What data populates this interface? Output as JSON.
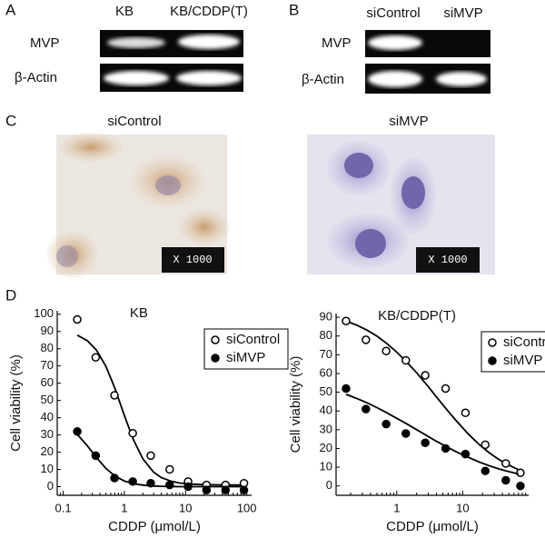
{
  "panels": {
    "A": {
      "label": "A",
      "columns": [
        "KB",
        "KB/CDDP(T)"
      ],
      "rows": [
        "MVP",
        "β-Actin"
      ]
    },
    "B": {
      "label": "B",
      "columns": [
        "siControl",
        "siMVP"
      ],
      "rows": [
        "MVP",
        "β-Actin"
      ]
    },
    "C": {
      "label": "C",
      "images": [
        {
          "title": "siControl",
          "scale": "X 1000"
        },
        {
          "title": "siMVP",
          "scale": "X 1000"
        }
      ]
    },
    "D": {
      "label": "D"
    }
  },
  "chart_data": [
    {
      "type": "scatter",
      "title": "KB",
      "xlabel": "CDDP (μmol/L)",
      "ylabel": "Cell viability (%)",
      "xlog": true,
      "xlim": [
        0.08,
        120
      ],
      "xticks": [
        0.1,
        1,
        10,
        100
      ],
      "ylim": [
        -5,
        102
      ],
      "yticks": [
        0,
        10,
        20,
        30,
        40,
        50,
        60,
        70,
        80,
        90,
        100
      ],
      "legend": "upper right",
      "series": [
        {
          "name": "siControl",
          "marker": "open",
          "color": "#000000",
          "x": [
            0.17,
            0.34,
            0.69,
            1.37,
            2.7,
            5.5,
            11,
            22,
            45,
            90
          ],
          "values": [
            97,
            75,
            53,
            31,
            18,
            10,
            3,
            1,
            1,
            2
          ],
          "fit": {
            "x": [
              0.17,
              0.25,
              0.35,
              0.5,
              0.7,
              1,
              1.4,
              2,
              3,
              4,
              6,
              8,
              12,
              18,
              25,
              35,
              50,
              70,
              90
            ],
            "values": [
              87.9,
              84.6,
              79.2,
              69.8,
              57.1,
              41.3,
              27.3,
              16.2,
              8.4,
              5.3,
              3,
              2.1,
              1.5,
              1.2,
              1.1,
              1.05,
              1,
              1,
              1
            ]
          }
        },
        {
          "name": "siMVP",
          "marker": "filled",
          "color": "#000000",
          "x": [
            0.17,
            0.34,
            0.69,
            1.37,
            2.7,
            5.5,
            11,
            22,
            45,
            90
          ],
          "values": [
            32,
            18,
            5,
            3,
            2,
            1,
            0,
            -2,
            -2,
            -2
          ],
          "fit": {
            "x": [
              0.17,
              0.25,
              0.35,
              0.5,
              0.7,
              1,
              1.4,
              2,
              3,
              4,
              6,
              8,
              12,
              18,
              25,
              35,
              50,
              70,
              90
            ],
            "values": [
              30.3,
              23.6,
              16.9,
              10.6,
              6.2,
              3.3,
              1.75,
              0.9,
              0.4,
              0.2,
              0.1,
              0,
              0,
              0,
              0,
              0,
              0,
              0,
              0
            ]
          }
        }
      ]
    },
    {
      "type": "scatter",
      "title": "KB/CDDP(T)",
      "xlabel": "CDDP (μmol/L)",
      "ylabel": "Cell viability (%)",
      "xlog": true,
      "xlim": [
        0.12,
        100
      ],
      "xticks": [
        1,
        10
      ],
      "ylim": [
        -5,
        92
      ],
      "yticks": [
        0,
        10,
        20,
        30,
        40,
        50,
        60,
        70,
        80,
        90
      ],
      "legend": "upper right",
      "series": [
        {
          "name": "siControl",
          "marker": "open",
          "color": "#000000",
          "x": [
            0.17,
            0.34,
            0.69,
            1.37,
            2.7,
            5.5,
            11,
            22,
            45,
            75
          ],
          "values": [
            88,
            78,
            72,
            67,
            59,
            52,
            39,
            22,
            12,
            7
          ],
          "fit": {
            "x": [
              0.17,
              0.25,
              0.35,
              0.5,
              0.7,
              1,
              1.4,
              2,
              3,
              4,
              6,
              8,
              12,
              18,
              25,
              35,
              50,
              70
            ],
            "values": [
              88,
              85.7,
              83.2,
              79.9,
              76.1,
              71.4,
              66.3,
              60.4,
              53,
              47.5,
              39.9,
              34.7,
              27.9,
              21.9,
              17.8,
              14.2,
              11.1,
              8.7
            ]
          }
        },
        {
          "name": "siMVP",
          "marker": "filled",
          "color": "#000000",
          "x": [
            0.17,
            0.34,
            0.69,
            1.37,
            2.7,
            5.5,
            11,
            22,
            45,
            75
          ],
          "values": [
            52,
            41,
            33,
            28,
            23,
            20,
            17,
            8,
            3,
            0
          ],
          "fit": {
            "x": [
              0.17,
              0.25,
              0.35,
              0.5,
              0.7,
              1,
              1.4,
              2,
              3,
              4,
              6,
              8,
              12,
              18,
              25,
              35,
              50,
              70
            ],
            "values": [
              48.9,
              46.6,
              44.4,
              41.8,
              39.1,
              36.1,
              33.2,
              30,
              26.4,
              23.8,
              20.5,
              18.2,
              15.3,
              12.7,
              10.8,
              9.1,
              7.6,
              6.4
            ]
          }
        }
      ]
    }
  ]
}
